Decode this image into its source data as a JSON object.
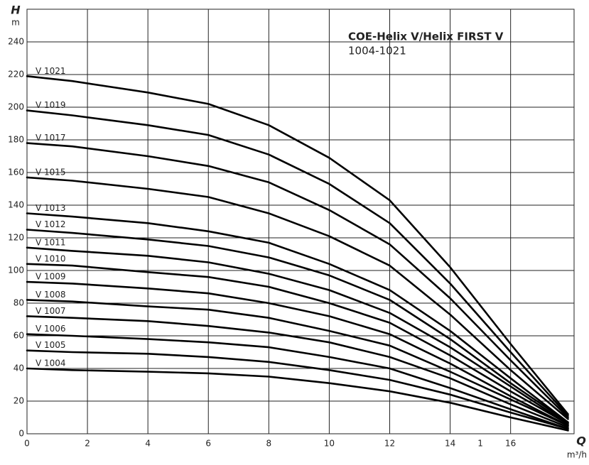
{
  "chart_data": {
    "type": "line",
    "title": "COE-Helix V/Helix FIRST V",
    "subtitle": "1004-1021",
    "y_label": "H",
    "y_unit": "m",
    "x_label": "Q",
    "x_unit": "m³/h",
    "color": "#000000",
    "grid": true,
    "xlim": [
      0,
      18.1
    ],
    "ylim": [
      0,
      260
    ],
    "xticks": [
      0,
      2,
      4,
      6,
      8,
      10,
      12,
      14,
      {
        "value": 15,
        "label": "1"
      },
      16
    ],
    "yticks": [
      0,
      20,
      40,
      60,
      80,
      100,
      120,
      140,
      160,
      180,
      200,
      220,
      240
    ],
    "x": [
      0,
      1.5,
      4,
      6,
      8,
      10,
      12,
      14,
      16,
      17.9
    ],
    "series": [
      {
        "name": "V 1021",
        "values": [
          219,
          216,
          209,
          202,
          189,
          169,
          143,
          102,
          55,
          12
        ]
      },
      {
        "name": "V 1019",
        "values": [
          198,
          195,
          189,
          183,
          171,
          153,
          129,
          92,
          50,
          11
        ]
      },
      {
        "name": "V 1017",
        "values": [
          178,
          176,
          170,
          164,
          154,
          137,
          116,
          83,
          45,
          10
        ]
      },
      {
        "name": "V 1015",
        "values": [
          157,
          155,
          150,
          145,
          135,
          121,
          103,
          73,
          39,
          9
        ]
      },
      {
        "name": "V 1013",
        "values": [
          135,
          133,
          129,
          124,
          117,
          104,
          88,
          63,
          34,
          7
        ]
      },
      {
        "name": "V 1012",
        "values": [
          125,
          123,
          119,
          115,
          108,
          97,
          82,
          58,
          31,
          7
        ]
      },
      {
        "name": "V 1011",
        "values": [
          114,
          112,
          109,
          105,
          98,
          88,
          74,
          53,
          29,
          6
        ]
      },
      {
        "name": "V 1010",
        "values": [
          104,
          103,
          99,
          96,
          90,
          80,
          68,
          48,
          26,
          6
        ]
      },
      {
        "name": "V 1009",
        "values": [
          93,
          92,
          89,
          86,
          80,
          72,
          61,
          43,
          23,
          5
        ]
      },
      {
        "name": "V 1008",
        "values": [
          82,
          81,
          78,
          76,
          71,
          63,
          54,
          38,
          21,
          5
        ]
      },
      {
        "name": "V 1007",
        "values": [
          72,
          71,
          69,
          66,
          62,
          56,
          47,
          34,
          18,
          4
        ]
      },
      {
        "name": "V 1006",
        "values": [
          61,
          60,
          58,
          56,
          53,
          47,
          40,
          28,
          15,
          3
        ]
      },
      {
        "name": "V 1005",
        "values": [
          51,
          50,
          49,
          47,
          44,
          39,
          33,
          24,
          13,
          3
        ]
      },
      {
        "name": "V 1004",
        "values": [
          40,
          39,
          38,
          37,
          35,
          31,
          26,
          19,
          10,
          2
        ]
      }
    ]
  }
}
